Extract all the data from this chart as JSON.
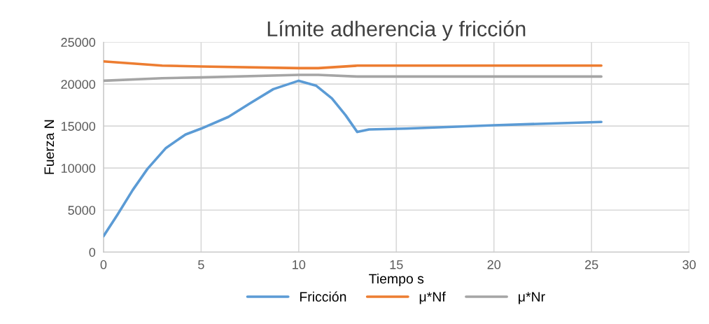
{
  "chart_data": {
    "type": "line",
    "title": "Límite adherencia y fricción",
    "xlabel": "Tiempo s",
    "ylabel": "Fuerza N",
    "xlim": [
      0,
      30
    ],
    "xticks": [
      0,
      5,
      10,
      15,
      20,
      25,
      30
    ],
    "ylim": [
      0,
      25000
    ],
    "yticks": [
      0,
      5000,
      10000,
      15000,
      20000,
      25000
    ],
    "grid": true,
    "legend": "bottom",
    "marker": "none",
    "line_style": "solid",
    "series": [
      {
        "name": "Fricción",
        "color": "#5b9bd5",
        "x": [
          0,
          0.7,
          1.5,
          2.25,
          3.2,
          4.2,
          5,
          6.4,
          7.5,
          8.7,
          10,
          10.9,
          11.7,
          12.4,
          13.0,
          13.6,
          15.5,
          20,
          25.5
        ],
        "values": [
          1900,
          4400,
          7400,
          9900,
          12400,
          14000,
          14700,
          16100,
          17700,
          19400,
          20400,
          19800,
          18300,
          16300,
          14300,
          14600,
          14700,
          15100,
          15500
        ]
      },
      {
        "name": "μ*Nf",
        "color": "#ed7d31",
        "x": [
          0,
          3,
          5,
          10,
          11,
          13,
          25.5
        ],
        "values": [
          22700,
          22200,
          22100,
          21900,
          21900,
          22200,
          22200
        ]
      },
      {
        "name": "μ*Nr",
        "color": "#a5a5a5",
        "x": [
          0,
          3,
          5,
          10,
          11,
          13,
          25.5
        ],
        "values": [
          20400,
          20700,
          20800,
          21100,
          21100,
          20900,
          20900
        ]
      }
    ]
  }
}
